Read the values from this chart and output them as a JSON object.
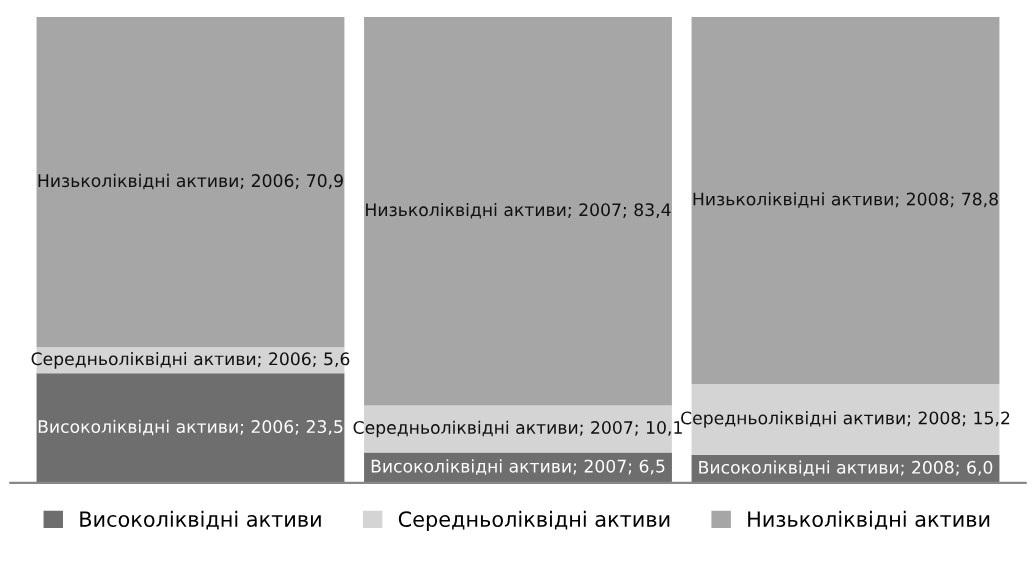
{
  "chart_data": {
    "type": "bar",
    "stacked": true,
    "categories": [
      null,
      null,
      null
    ],
    "legend": "bottom",
    "grid": false,
    "series": [
      {
        "name": "Високоліквідні активи",
        "color": "#6e6e6e",
        "values": [
          23.5,
          6.5,
          6.0
        ],
        "value_labels": [
          "Високоліквідні активи; 2006; 23,5",
          "Високоліквідні активи; 2007; 6,5",
          "Високоліквідні активи; 2008; 6,0"
        ]
      },
      {
        "name": "Середньоліквідні активи",
        "color": "#d4d4d4",
        "values": [
          5.6,
          10.1,
          15.2
        ],
        "value_labels": [
          "Середньоліквідні активи; 2006; 5,6",
          "Середньоліквідні активи; 2007; 10,1",
          "Середньоліквідні активи; 2008; 15,2"
        ]
      },
      {
        "name": "Низьколіквідні активи",
        "color": "#a6a6a6",
        "values": [
          70.9,
          83.4,
          78.8
        ],
        "value_labels": [
          "Низьколіквідні активи; 2006; 70,9",
          "Низьколіквідні активи; 2007; 83,4",
          "Низьколіквідні активи; 2008; 78,8"
        ]
      }
    ]
  }
}
